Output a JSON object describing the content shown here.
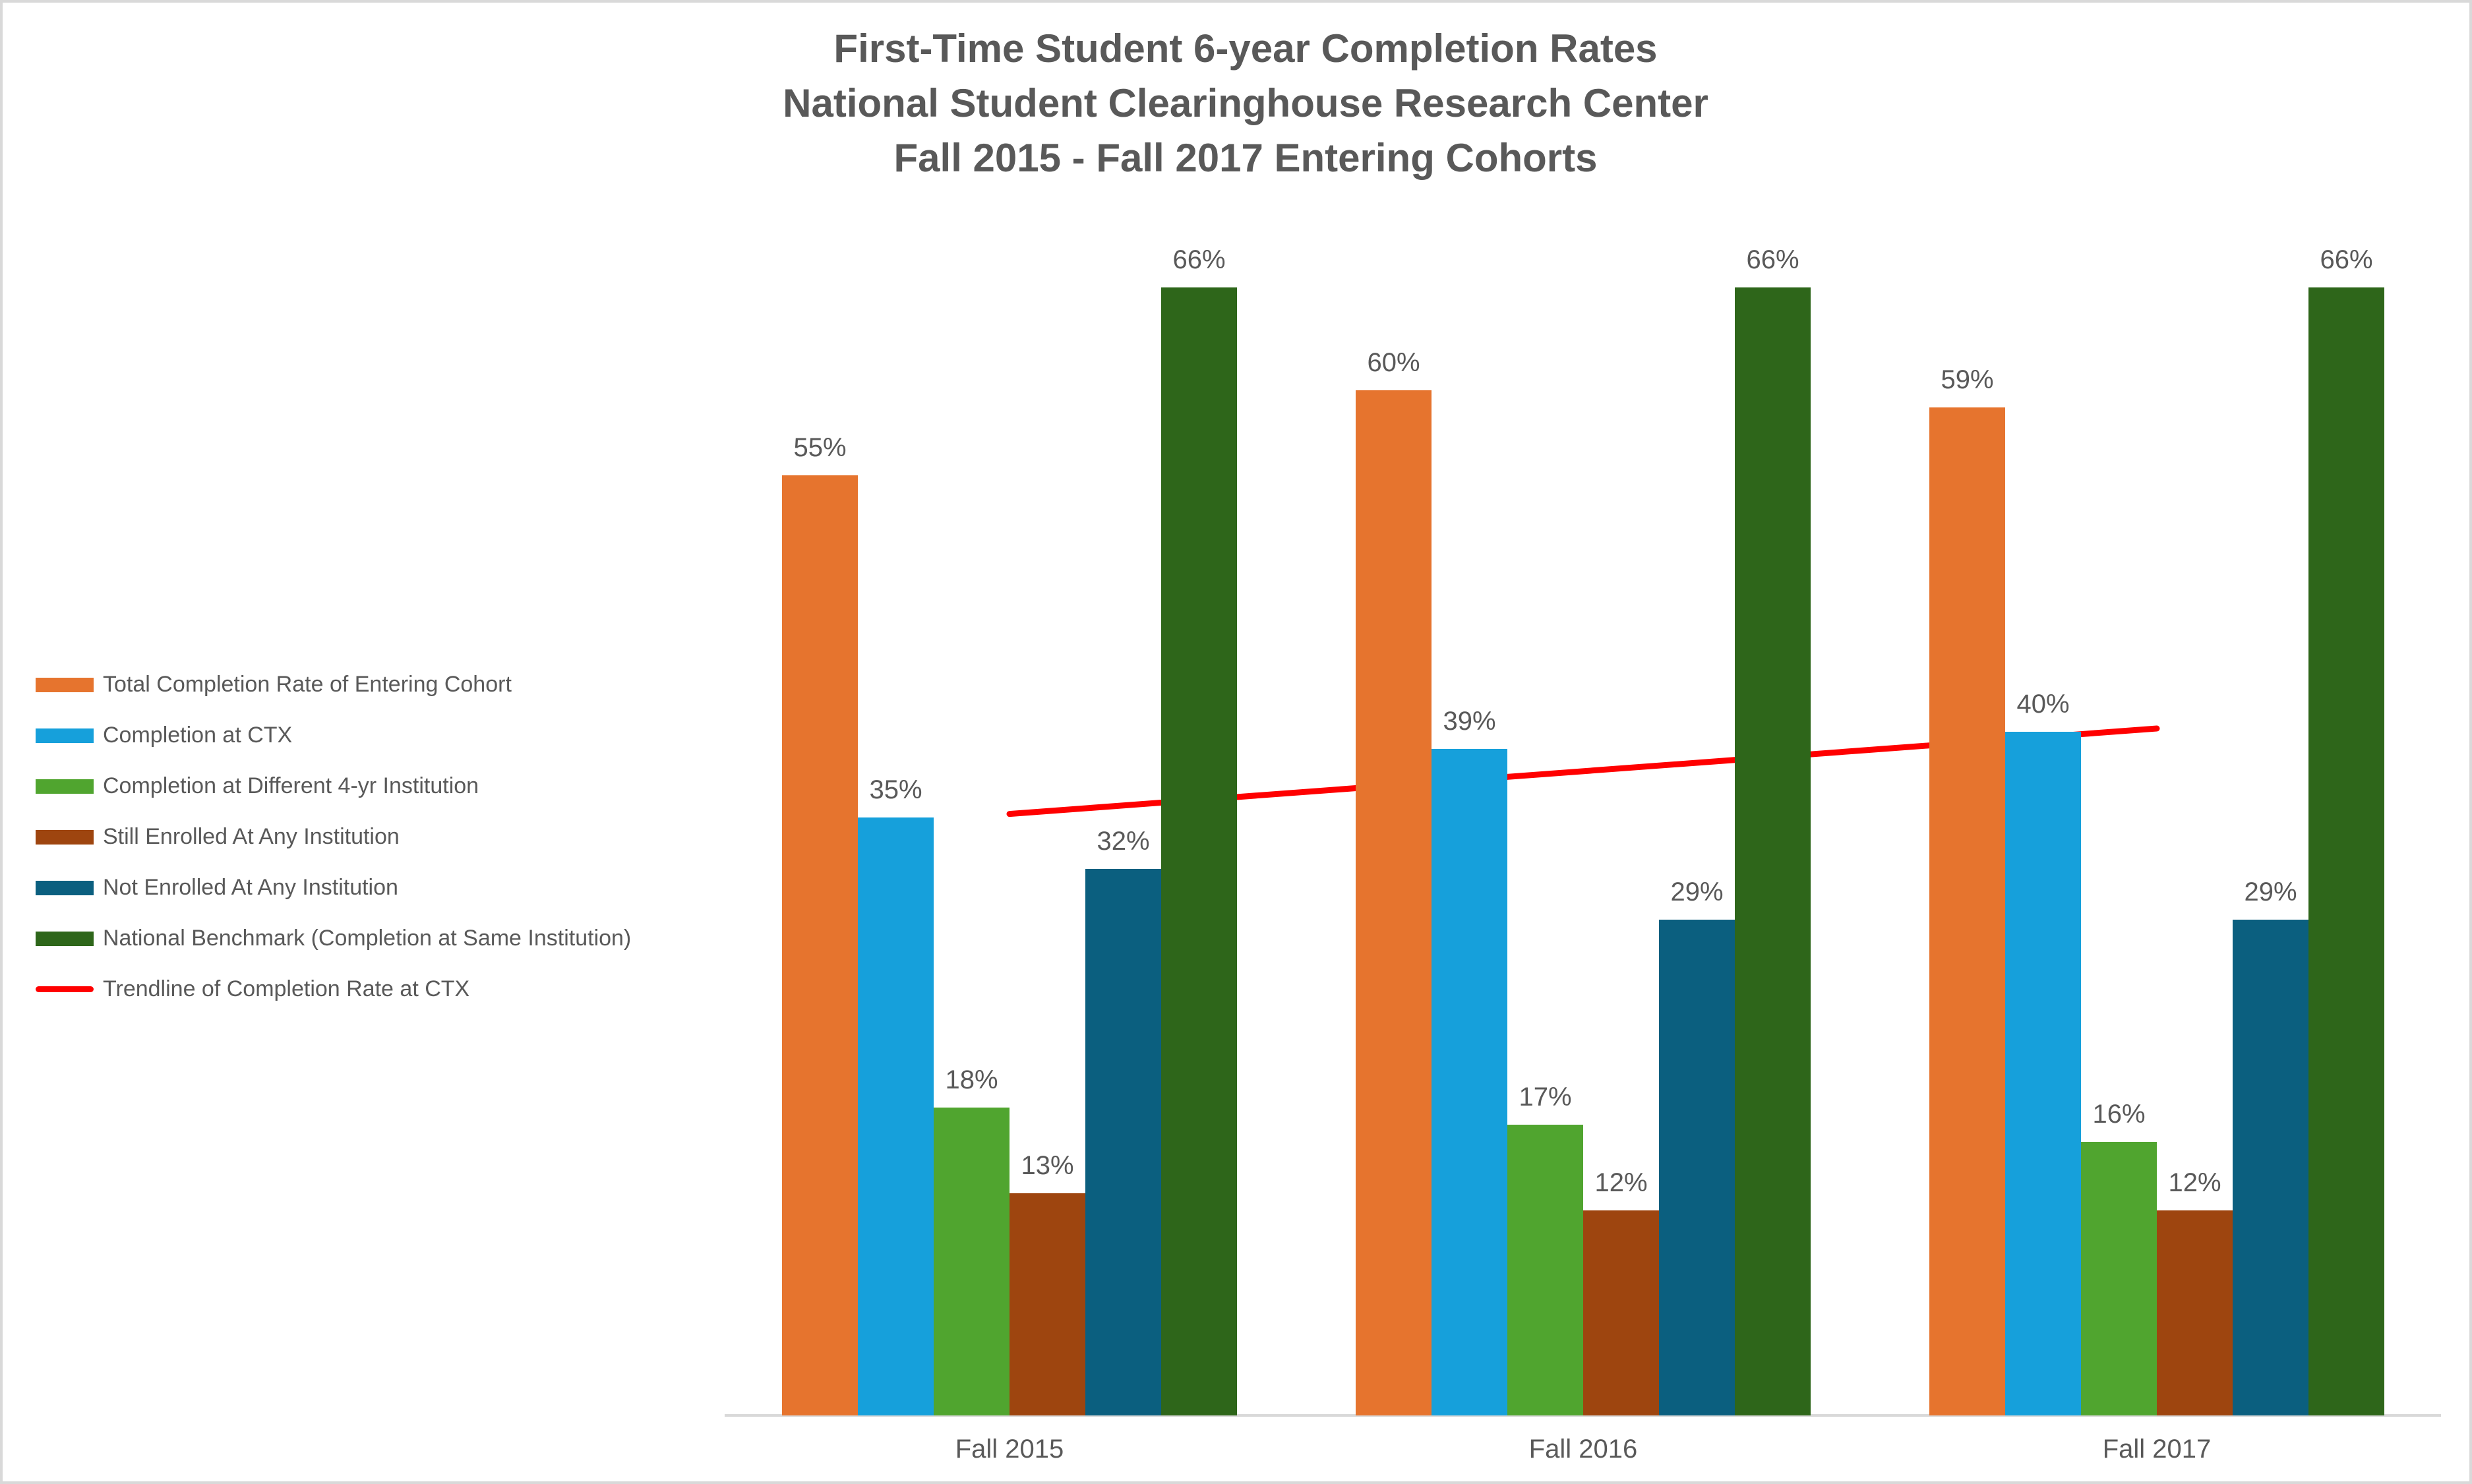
{
  "title": {
    "lines": [
      "First-Time Student 6-year Completion Rates",
      "National Student Clearinghouse Research Center",
      "Fall 2015 - Fall 2017 Entering Cohorts"
    ]
  },
  "colors": {
    "background": "#ffffff",
    "frame_border": "#d9d9d9",
    "axis_line": "#d9d9d9",
    "text": "#595959",
    "trendline": "#ff0000"
  },
  "chart_data": {
    "type": "bar",
    "categories": [
      "Fall 2015",
      "Fall 2016",
      "Fall 2017"
    ],
    "series": [
      {
        "name": "Total Completion Rate of Entering Cohort",
        "color": "#e6742e",
        "values": [
          55,
          60,
          59
        ]
      },
      {
        "name": "Completion at CTX",
        "color": "#16a0db",
        "values": [
          35,
          39,
          40
        ]
      },
      {
        "name": "Completion at Different 4-yr Institution",
        "color": "#50a52f",
        "values": [
          18,
          17,
          16
        ]
      },
      {
        "name": "Still Enrolled At Any Institution",
        "color": "#9e450f",
        "values": [
          13,
          12,
          12
        ]
      },
      {
        "name": "Not Enrolled At Any Institution",
        "color": "#0b5f7f",
        "values": [
          32,
          29,
          29
        ]
      },
      {
        "name": "National Benchmark (Completion at Same Institution)",
        "color": "#2e661a",
        "values": [
          66,
          66,
          66
        ]
      }
    ],
    "trendline": {
      "name": "Trendline of Completion Rate at CTX",
      "color": "#ff0000",
      "start_value": 35.2,
      "end_value": 40.2
    },
    "value_suffix": "%",
    "data_labels": [
      "55%",
      "35%",
      "18%",
      "13%",
      "32%",
      "66%",
      "60%",
      "39%",
      "17%",
      "12%",
      "29%",
      "66%",
      "59%",
      "40%",
      "16%",
      "12%",
      "29%",
      "66%"
    ],
    "ylim": [
      0,
      66
    ],
    "grid": false,
    "y_axis_visible": false,
    "legend_position": "left"
  }
}
